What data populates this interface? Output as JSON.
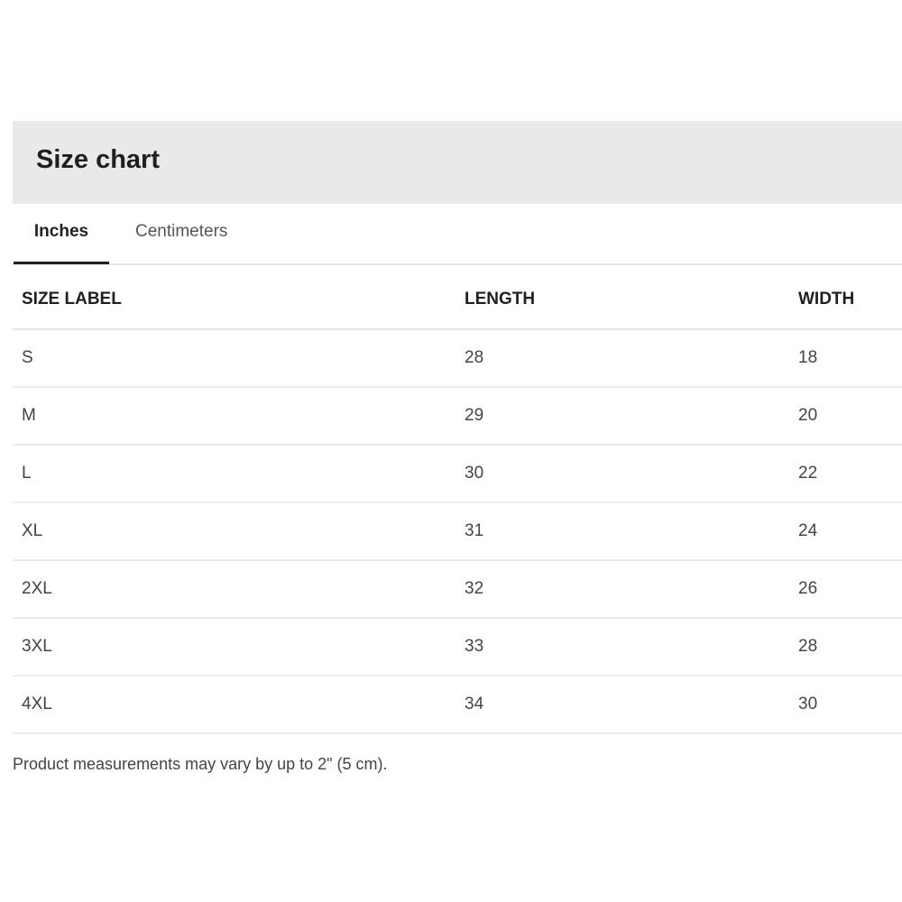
{
  "title": "Size chart",
  "tabs": [
    {
      "label": "Inches",
      "active": true
    },
    {
      "label": "Centimeters",
      "active": false
    }
  ],
  "table": {
    "headers": [
      "SIZE LABEL",
      "LENGTH",
      "WIDTH"
    ],
    "rows": [
      [
        "S",
        "28",
        "18"
      ],
      [
        "M",
        "29",
        "20"
      ],
      [
        "L",
        "30",
        "22"
      ],
      [
        "XL",
        "31",
        "24"
      ],
      [
        "2XL",
        "32",
        "26"
      ],
      [
        "3XL",
        "33",
        "28"
      ],
      [
        "4XL",
        "34",
        "30"
      ]
    ]
  },
  "note": "Product measurements may vary by up to 2\" (5 cm)."
}
